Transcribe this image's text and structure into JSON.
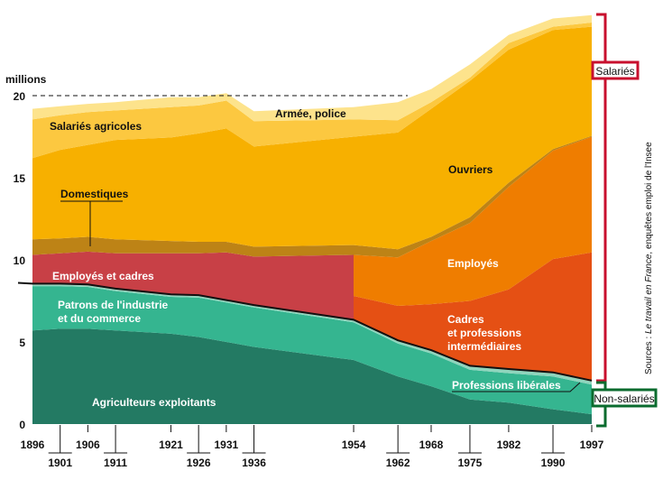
{
  "chart_data": {
    "type": "area",
    "stacked": true,
    "ylabel": "millions",
    "ylim": [
      0,
      25
    ],
    "yticks": [
      0,
      5,
      10,
      15,
      20
    ],
    "grid": false,
    "reference_line": {
      "y": 20,
      "style": "dashed"
    },
    "x": [
      1896,
      1901,
      1906,
      1911,
      1921,
      1926,
      1931,
      1936,
      1954,
      1962,
      1968,
      1975,
      1982,
      1990,
      1997
    ],
    "x_ticks_upper": [
      "1896",
      "1906",
      "1921",
      "1931",
      "1954",
      "1968",
      "1982",
      "1997"
    ],
    "x_ticks_lower": [
      "1901",
      "1911",
      "1926",
      "1936",
      "1962",
      "1975",
      "1990"
    ],
    "series": [
      {
        "name": "Agriculteurs exploitants",
        "color": "#237a63",
        "group": "Non-salariés",
        "values": [
          5.7,
          5.8,
          5.8,
          5.7,
          5.5,
          5.3,
          5.0,
          4.7,
          3.9,
          2.9,
          2.3,
          1.5,
          1.3,
          0.9,
          0.6
        ]
      },
      {
        "name": "Patrons de l'industrie et du commerce",
        "color": "#35b590",
        "group": "Non-salariés",
        "values": [
          2.7,
          2.6,
          2.55,
          2.4,
          2.25,
          2.4,
          2.4,
          2.4,
          2.3,
          2.0,
          2.0,
          1.8,
          1.8,
          2.0,
          1.8
        ]
      },
      {
        "name": "Professions libérales",
        "color": "#8fd5bd",
        "group": "Non-salariés",
        "values": [
          0.1,
          0.1,
          0.1,
          0.1,
          0.1,
          0.1,
          0.1,
          0.1,
          0.1,
          0.15,
          0.15,
          0.2,
          0.2,
          0.2,
          0.2
        ]
      },
      {
        "name": "Employés et cadres",
        "color": "#c84046",
        "group": "Salariés",
        "values": [
          1.8,
          1.9,
          2.05,
          2.2,
          2.55,
          2.6,
          2.95,
          3.0,
          4.0,
          null,
          null,
          null,
          null,
          null,
          null
        ]
      },
      {
        "name": "Cadres et professions intermédiaires",
        "color": "#e55014",
        "group": "Salariés",
        "values": [
          null,
          null,
          null,
          null,
          null,
          null,
          null,
          null,
          1.5,
          2.15,
          2.85,
          4.0,
          4.9,
          6.95,
          7.85
        ]
      },
      {
        "name": "Employés",
        "color": "#ef7d00",
        "group": "Salariés",
        "values": [
          null,
          null,
          null,
          null,
          null,
          null,
          null,
          null,
          2.5,
          2.95,
          3.85,
          4.75,
          6.25,
          6.6,
          7.05
        ]
      },
      {
        "name": "Domestiques",
        "color": "#bd8316",
        "group": "Salariés",
        "values": [
          0.95,
          0.9,
          0.9,
          0.85,
          0.75,
          0.7,
          0.65,
          0.6,
          0.6,
          0.5,
          0.25,
          0.35,
          0.25,
          0.1,
          0.05
        ]
      },
      {
        "name": "Ouvriers",
        "color": "#f7b000",
        "group": "Salariés",
        "values": [
          4.95,
          5.4,
          5.6,
          6.05,
          6.3,
          6.6,
          6.9,
          6.1,
          6.6,
          7.1,
          7.8,
          8.3,
          8.1,
          7.25,
          6.65
        ]
      },
      {
        "name": "Salariés agricoles",
        "color": "#fcc840",
        "group": "Salariés",
        "values": [
          2.35,
          2.1,
          2.0,
          1.8,
          1.85,
          1.7,
          1.7,
          1.55,
          1.05,
          0.75,
          0.4,
          0.2,
          0.4,
          0.2,
          0.25
        ]
      },
      {
        "name": "Armée, police",
        "color": "#fde38c",
        "group": "Salariés",
        "values": [
          0.65,
          0.55,
          0.5,
          0.5,
          0.6,
          0.5,
          0.45,
          0.6,
          0.75,
          1.1,
          0.8,
          0.8,
          0.5,
          0.5,
          0.45
        ]
      }
    ],
    "labels": {
      "agriculteurs": "Agriculteurs exploitants",
      "patrons_1": "Patrons de l'industrie",
      "patrons_2": "et du commerce",
      "liberales": "Professions libérales",
      "employes_cadres": "Employés et cadres",
      "cadres_1": "Cadres",
      "cadres_2": "et professions",
      "cadres_3": "intermédiaires",
      "employes": "Employés",
      "domestiques": "Domestiques",
      "ouvriers": "Ouvriers",
      "salaries_agricoles": "Salariés agricoles",
      "armee": "Armée, police"
    },
    "brackets": {
      "salaries": {
        "label": "Salariés",
        "color": "#c8102e"
      },
      "non_salaries": {
        "label": "Non-salariés",
        "color": "#0a6b2e"
      }
    },
    "source": {
      "prefix": "Sources : ",
      "title": "Le travail en France",
      "suffix": ", enquêtes emploi de l'Insee"
    }
  }
}
